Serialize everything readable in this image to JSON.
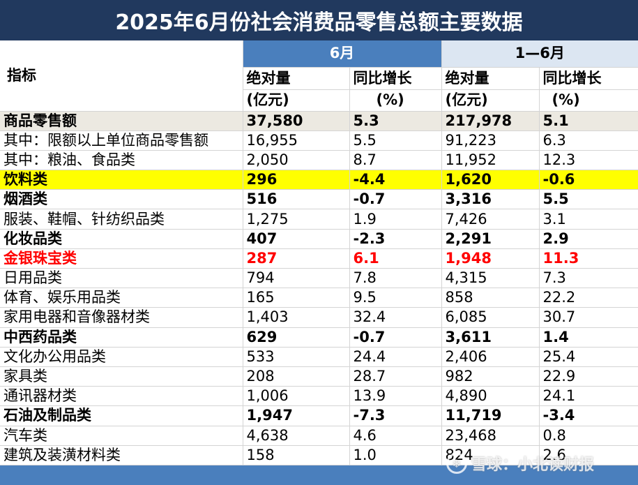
{
  "title": "2025年6月份社会消费品零售总额主要数据",
  "header": {
    "indicator": "指标",
    "period_june": "6月",
    "period_ytd": "1—6月",
    "abs_label": "绝对量",
    "yoy_label": "同比增长",
    "abs_unit": "(亿元)",
    "yoy_unit": "(%)"
  },
  "rows": [
    {
      "name": "商品零售额",
      "jun_abs": "37,580",
      "jun_yoy": "5.3",
      "ytd_abs": "217,978",
      "ytd_yoy": "5.1"
    },
    {
      "name": "其中：限额以上单位商品零售额",
      "jun_abs": "16,955",
      "jun_yoy": "5.5",
      "ytd_abs": "91,223",
      "ytd_yoy": "6.3"
    },
    {
      "name": "其中：粮油、食品类",
      "jun_abs": "2,050",
      "jun_yoy": "8.7",
      "ytd_abs": "11,952",
      "ytd_yoy": "12.3"
    },
    {
      "name": "饮料类",
      "jun_abs": "296",
      "jun_yoy": "-4.4",
      "ytd_abs": "1,620",
      "ytd_yoy": "-0.6"
    },
    {
      "name": "烟酒类",
      "jun_abs": "516",
      "jun_yoy": "-0.7",
      "ytd_abs": "3,316",
      "ytd_yoy": "5.5"
    },
    {
      "name": "服装、鞋帽、针纺织品类",
      "jun_abs": "1,275",
      "jun_yoy": "1.9",
      "ytd_abs": "7,426",
      "ytd_yoy": "3.1"
    },
    {
      "name": "化妆品类",
      "jun_abs": "407",
      "jun_yoy": "-2.3",
      "ytd_abs": "2,291",
      "ytd_yoy": "2.9"
    },
    {
      "name": "金银珠宝类",
      "jun_abs": "287",
      "jun_yoy": "6.1",
      "ytd_abs": "1,948",
      "ytd_yoy": "11.3"
    },
    {
      "name": "日用品类",
      "jun_abs": "794",
      "jun_yoy": "7.8",
      "ytd_abs": "4,315",
      "ytd_yoy": "7.3"
    },
    {
      "name": "体育、娱乐用品类",
      "jun_abs": "165",
      "jun_yoy": "9.5",
      "ytd_abs": "858",
      "ytd_yoy": "22.2"
    },
    {
      "name": "家用电器和音像器材类",
      "jun_abs": "1,403",
      "jun_yoy": "32.4",
      "ytd_abs": "6,085",
      "ytd_yoy": "30.7"
    },
    {
      "name": "中西药品类",
      "jun_abs": "629",
      "jun_yoy": "-0.7",
      "ytd_abs": "3,611",
      "ytd_yoy": "1.4"
    },
    {
      "name": "文化办公用品类",
      "jun_abs": "533",
      "jun_yoy": "24.4",
      "ytd_abs": "2,406",
      "ytd_yoy": "25.4"
    },
    {
      "name": "家具类",
      "jun_abs": "208",
      "jun_yoy": "28.7",
      "ytd_abs": "982",
      "ytd_yoy": "22.9"
    },
    {
      "name": "通讯器材类",
      "jun_abs": "1,006",
      "jun_yoy": "13.9",
      "ytd_abs": "4,890",
      "ytd_yoy": "24.1"
    },
    {
      "name": "石油及制品类",
      "jun_abs": "1,947",
      "jun_yoy": "-7.3",
      "ytd_abs": "11,719",
      "ytd_yoy": "-3.4"
    },
    {
      "name": "汽车类",
      "jun_abs": "4,638",
      "jun_yoy": "4.6",
      "ytd_abs": "23,468",
      "ytd_yoy": "0.8"
    },
    {
      "name": "建筑及装潢材料类",
      "jun_abs": "158",
      "jun_yoy": "1.0",
      "ytd_abs": "824",
      "ytd_yoy": "2.6"
    }
  ],
  "watermark": "雪球：小北读财报",
  "colors": {
    "title_bg": "#21395e",
    "june_header_bg": "#4a7fbd",
    "ytd_header_bg": "#dce6f2",
    "total_row_bg": "#ece9e1",
    "highlight_yellow": "#ffff00",
    "highlight_red_text": "#ff0000",
    "footer_bg": "#4a7fbd"
  }
}
